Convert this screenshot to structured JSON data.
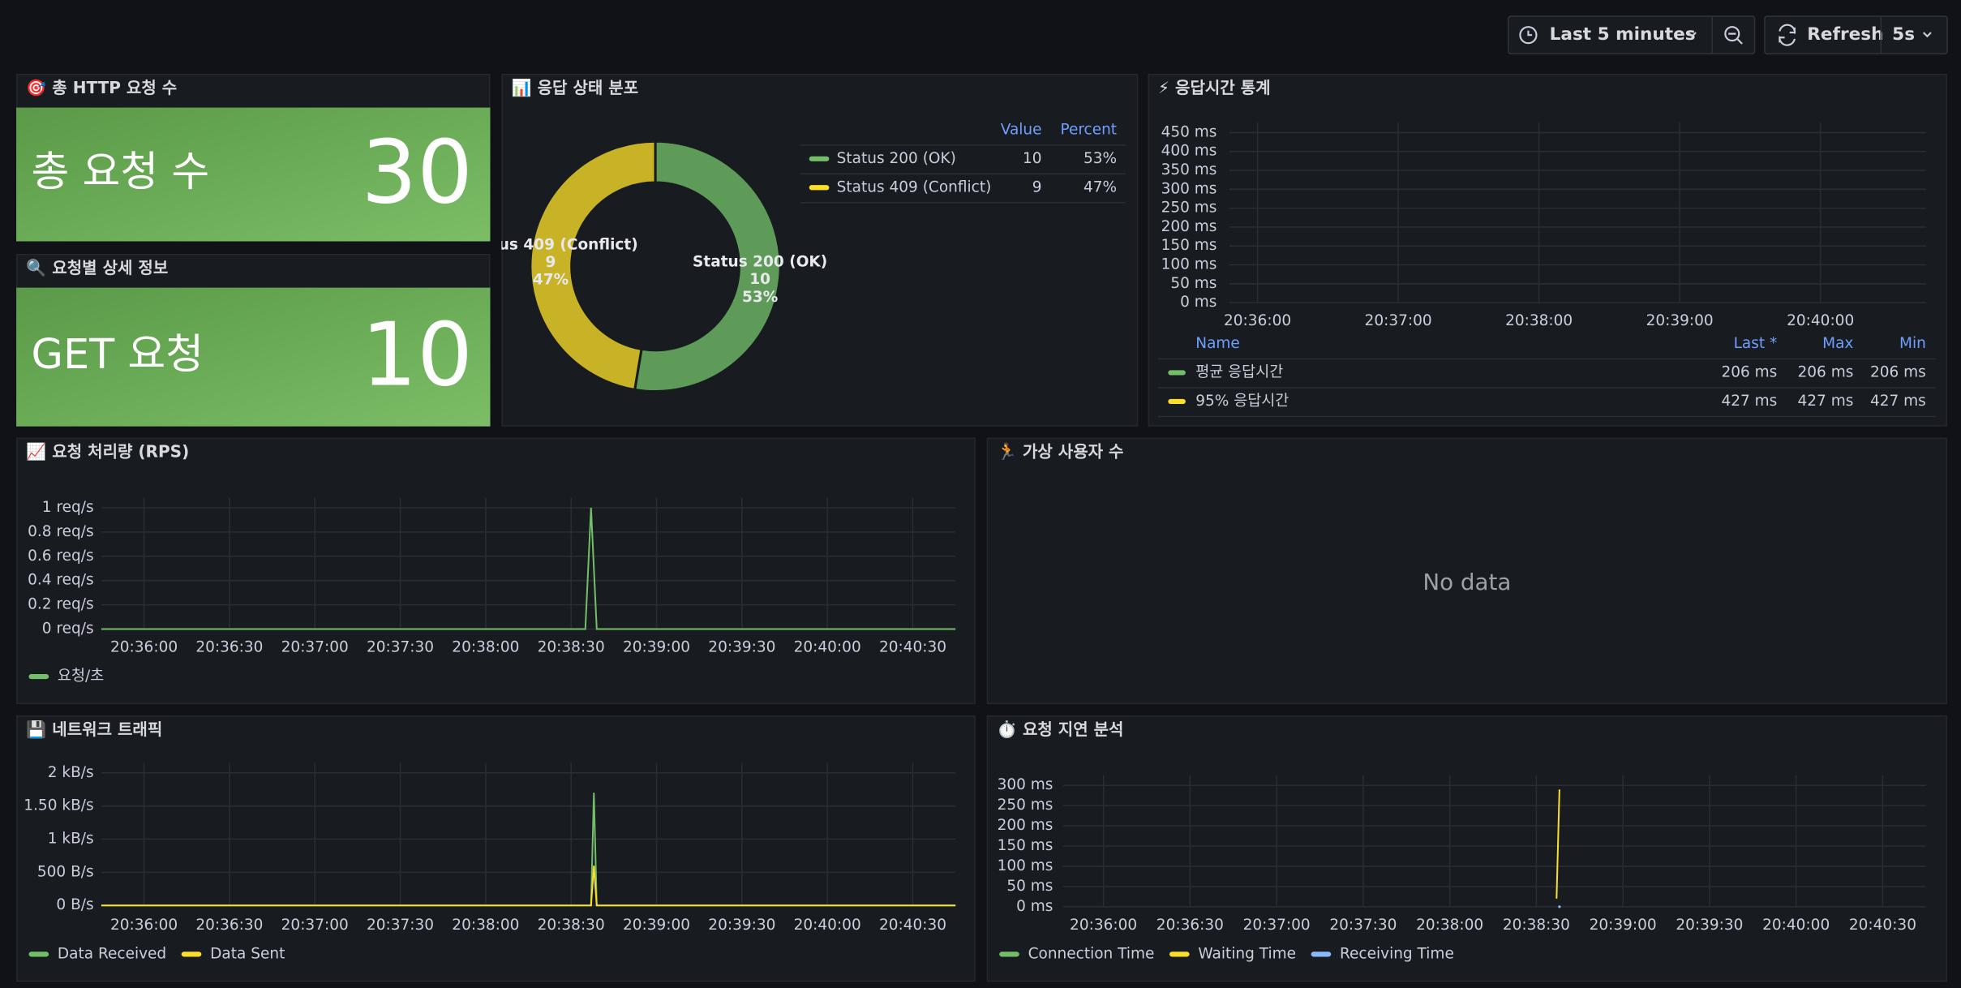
{
  "toolbar": {
    "time_range": "Last 5 minutes",
    "refresh": "Refresh",
    "interval": "5s"
  },
  "chart_data": [
    {
      "type": "stat",
      "title": "🎯 총 HTTP 요청 수",
      "label": "총 요청 수",
      "value": 30,
      "color": "#73bf69"
    },
    {
      "type": "stat",
      "title": "🔍 요청별 상세 정보",
      "label": "GET 요청",
      "value": 10,
      "color": "#73bf69"
    },
    {
      "type": "pie",
      "title": "📊 응답 상태 분포",
      "categories": [
        "Status 200 (OK)",
        "Status 409 (Conflict)"
      ],
      "values": [
        10,
        9
      ],
      "percent_labels": [
        "53%",
        "47%"
      ],
      "colors": [
        "#73bf69",
        "#fade2a"
      ],
      "legend_headers": [
        "Value",
        "Percent"
      ]
    },
    {
      "type": "line",
      "title": "⚡ 응답시간 통계",
      "xlim": [
        "20:35:48",
        "20:40:45"
      ],
      "xticks": [
        "20:36:00",
        "20:37:00",
        "20:38:00",
        "20:39:00",
        "20:40:00"
      ],
      "ylim": [
        0,
        450
      ],
      "yticks": [
        {
          "value": 0,
          "label": "0 ms"
        },
        {
          "value": 50,
          "label": "50 ms"
        },
        {
          "value": 100,
          "label": "100 ms"
        },
        {
          "value": 150,
          "label": "150 ms"
        },
        {
          "value": 200,
          "label": "200 ms"
        },
        {
          "value": 250,
          "label": "250 ms"
        },
        {
          "value": 300,
          "label": "300 ms"
        },
        {
          "value": 350,
          "label": "350 ms"
        },
        {
          "value": 400,
          "label": "400 ms"
        },
        {
          "value": 450,
          "label": "450 ms"
        }
      ],
      "grid": true,
      "legend_headers": [
        "Name",
        "Last *",
        "Max",
        "Min"
      ],
      "series": [
        {
          "name": "평균 응답시간",
          "color": "#73bf69",
          "stats": [
            "206 ms",
            "206 ms",
            "206 ms"
          ]
        },
        {
          "name": "95% 응답시간",
          "color": "#fade2a",
          "stats": [
            "427 ms",
            "427 ms",
            "427 ms"
          ]
        }
      ]
    },
    {
      "type": "line",
      "title": "📈 요청 처리량 (RPS)",
      "xlim": [
        "20:35:45",
        "20:40:45"
      ],
      "xticks": [
        "20:36:00",
        "20:36:30",
        "20:37:00",
        "20:37:30",
        "20:38:00",
        "20:38:30",
        "20:39:00",
        "20:39:30",
        "20:40:00",
        "20:40:30"
      ],
      "ylim": [
        0,
        1
      ],
      "yticks": [
        {
          "value": 0,
          "label": "0 req/s"
        },
        {
          "value": 0.2,
          "label": "0.2 req/s"
        },
        {
          "value": 0.4,
          "label": "0.4 req/s"
        },
        {
          "value": 0.6,
          "label": "0.6 req/s"
        },
        {
          "value": 0.8,
          "label": "0.8 req/s"
        },
        {
          "value": 1,
          "label": "1 req/s"
        }
      ],
      "grid": true,
      "series": [
        {
          "name": "요청/초",
          "color": "#73bf69",
          "x": [
            "20:35:45",
            "20:38:35",
            "20:38:37",
            "20:38:39",
            "20:40:45"
          ],
          "values": [
            0,
            0,
            1,
            0,
            0
          ]
        }
      ]
    },
    {
      "type": "empty",
      "title": "🏃 가상 사용자 수",
      "message": "No data"
    },
    {
      "type": "line",
      "title": "💾 네트워크 트래픽",
      "xlim": [
        "20:35:45",
        "20:40:45"
      ],
      "xticks": [
        "20:36:00",
        "20:36:30",
        "20:37:00",
        "20:37:30",
        "20:38:00",
        "20:38:30",
        "20:39:00",
        "20:39:30",
        "20:40:00",
        "20:40:30"
      ],
      "ylim": [
        0,
        2000
      ],
      "yticks": [
        {
          "value": 0,
          "label": "0 B/s"
        },
        {
          "value": 500,
          "label": "500 B/s"
        },
        {
          "value": 1000,
          "label": "1 kB/s"
        },
        {
          "value": 1500,
          "label": "1.50 kB/s"
        },
        {
          "value": 2000,
          "label": "2 kB/s"
        }
      ],
      "grid": true,
      "series": [
        {
          "name": "Data Received",
          "color": "#73bf69",
          "x": [
            "20:35:45",
            "20:38:37",
            "20:38:38",
            "20:38:39",
            "20:40:45"
          ],
          "values": [
            0,
            0,
            1700,
            0,
            0
          ]
        },
        {
          "name": "Data Sent",
          "color": "#fade2a",
          "x": [
            "20:35:45",
            "20:38:37",
            "20:38:38",
            "20:38:39",
            "20:40:45"
          ],
          "values": [
            0,
            0,
            600,
            0,
            0
          ]
        }
      ]
    },
    {
      "type": "line",
      "title": "⏱️ 요청 지연 분석",
      "xlim": [
        "20:35:46",
        "20:40:45"
      ],
      "xticks": [
        "20:36:00",
        "20:36:30",
        "20:37:00",
        "20:37:30",
        "20:38:00",
        "20:38:30",
        "20:39:00",
        "20:39:30",
        "20:40:00",
        "20:40:30"
      ],
      "ylim": [
        0,
        300
      ],
      "yticks": [
        {
          "value": 0,
          "label": "0 ms"
        },
        {
          "value": 50,
          "label": "50 ms"
        },
        {
          "value": 100,
          "label": "100 ms"
        },
        {
          "value": 150,
          "label": "150 ms"
        },
        {
          "value": 200,
          "label": "200 ms"
        },
        {
          "value": 250,
          "label": "250 ms"
        },
        {
          "value": 300,
          "label": "300 ms"
        }
      ],
      "grid": true,
      "series": [
        {
          "name": "Connection Time",
          "color": "#73bf69",
          "x": [
            "20:38:38"
          ],
          "values": [
            0
          ]
        },
        {
          "name": "Waiting Time",
          "color": "#fade2a",
          "x": [
            "20:38:37",
            "20:38:38"
          ],
          "values": [
            20,
            290
          ]
        },
        {
          "name": "Receiving Time",
          "color": "#8ab8ff",
          "x": [
            "20:38:38"
          ],
          "values": [
            0
          ]
        }
      ]
    }
  ]
}
